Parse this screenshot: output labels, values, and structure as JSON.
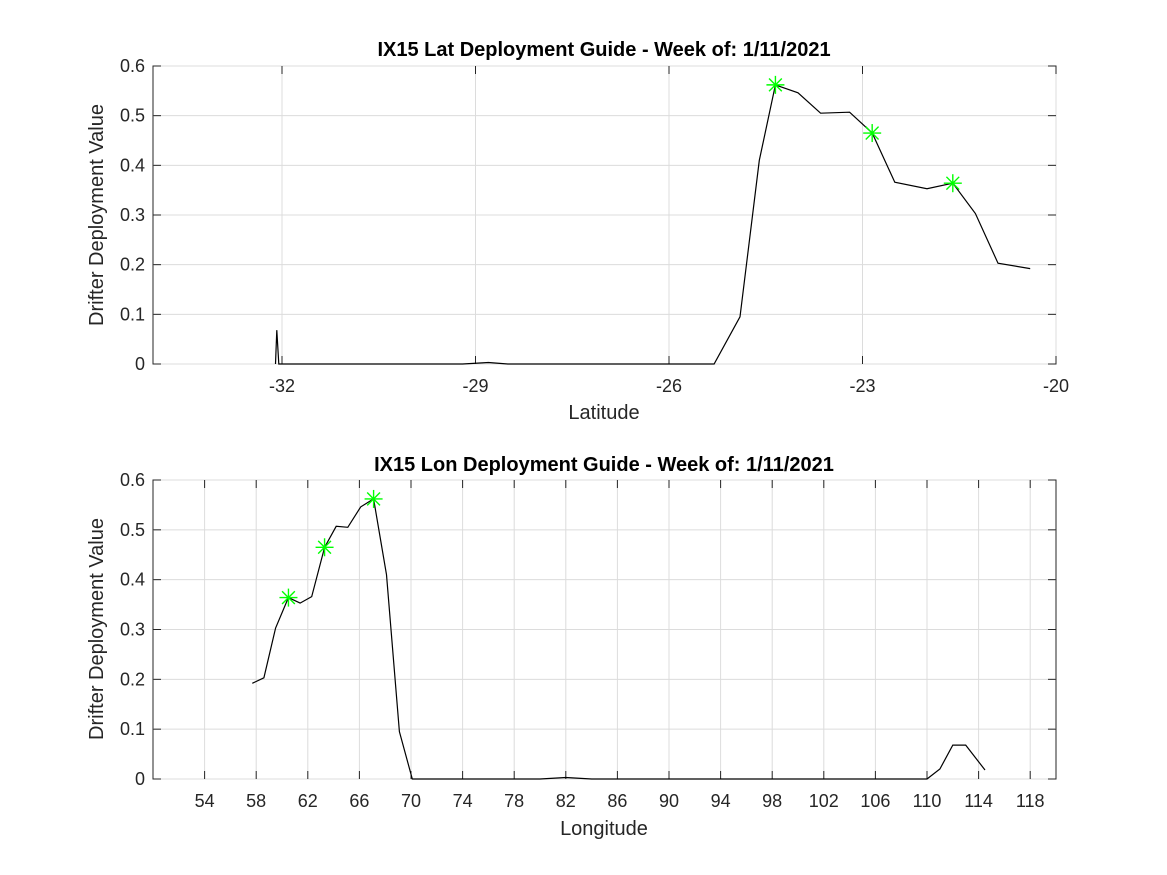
{
  "chart_data": [
    {
      "type": "line",
      "title": "IX15 Lat Deployment Guide - Week of: 1/11/2021",
      "xlabel": "Latitude",
      "ylabel": "Drifter Deployment Value",
      "xlim": [
        -34,
        -20
      ],
      "ylim": [
        0,
        0.6
      ],
      "xticks": [
        -32,
        -29,
        -26,
        -23,
        -20
      ],
      "xtick_labels": [
        "-32",
        "-29",
        "-26",
        "-23",
        "-20"
      ],
      "yticks": [
        0,
        0.1,
        0.2,
        0.3,
        0.4,
        0.5,
        0.6
      ],
      "ytick_labels": [
        "0",
        "0.1",
        "0.2",
        "0.3",
        "0.4",
        "0.5",
        "0.6"
      ],
      "grid": true,
      "series": [
        {
          "color": "#000000",
          "x": [
            -32.1,
            -32.08,
            -32.05,
            -31.0,
            -29.2,
            -28.8,
            -28.5,
            -26.5,
            -25.3,
            -24.9,
            -24.6,
            -24.35,
            -24.0,
            -23.65,
            -23.2,
            -22.85,
            -22.5,
            -22.0,
            -21.6,
            -21.25,
            -20.9,
            -20.4
          ],
          "y": [
            0.0,
            0.068,
            0.0,
            0.0,
            0.0,
            0.003,
            0.0,
            0.0,
            0.0,
            0.095,
            0.41,
            0.562,
            0.546,
            0.505,
            0.507,
            0.465,
            0.366,
            0.353,
            0.364,
            0.303,
            0.203,
            0.192
          ]
        },
        {
          "color": "#00ff00",
          "marker": "asterisk",
          "x": [
            -24.35,
            -22.85,
            -21.6
          ],
          "y": [
            0.562,
            0.465,
            0.364
          ]
        }
      ]
    },
    {
      "type": "line",
      "title": "IX15 Lon Deployment Guide - Week of: 1/11/2021",
      "xlabel": "Longitude",
      "ylabel": "Drifter Deployment Value",
      "xlim": [
        50,
        120
      ],
      "ylim": [
        0,
        0.6
      ],
      "xticks": [
        54,
        58,
        62,
        66,
        70,
        74,
        78,
        82,
        86,
        90,
        94,
        98,
        102,
        106,
        110,
        114,
        118
      ],
      "xtick_labels": [
        "54",
        "58",
        "62",
        "66",
        "70",
        "74",
        "78",
        "82",
        "86",
        "90",
        "94",
        "98",
        "102",
        "106",
        "110",
        "114",
        "118"
      ],
      "yticks": [
        0,
        0.1,
        0.2,
        0.3,
        0.4,
        0.5,
        0.6
      ],
      "ytick_labels": [
        "0",
        "0.1",
        "0.2",
        "0.3",
        "0.4",
        "0.5",
        "0.6"
      ],
      "grid": true,
      "series": [
        {
          "color": "#000000",
          "x": [
            57.7,
            58.6,
            59.5,
            60.5,
            61.4,
            62.3,
            63.3,
            64.2,
            65.1,
            66.1,
            67.1,
            68.1,
            69.1,
            70.1,
            72.0,
            80.0,
            82.0,
            84.0,
            100.0,
            110.0,
            111.0,
            112.0,
            113.0,
            114.5
          ],
          "y": [
            0.192,
            0.203,
            0.303,
            0.364,
            0.353,
            0.366,
            0.465,
            0.507,
            0.505,
            0.546,
            0.562,
            0.41,
            0.095,
            0.0,
            0.0,
            0.0,
            0.003,
            0.0,
            0.0,
            0.0,
            0.02,
            0.068,
            0.068,
            0.018
          ]
        },
        {
          "color": "#00ff00",
          "marker": "asterisk",
          "x": [
            60.5,
            63.3,
            67.1
          ],
          "y": [
            0.364,
            0.465,
            0.562
          ]
        }
      ]
    }
  ]
}
